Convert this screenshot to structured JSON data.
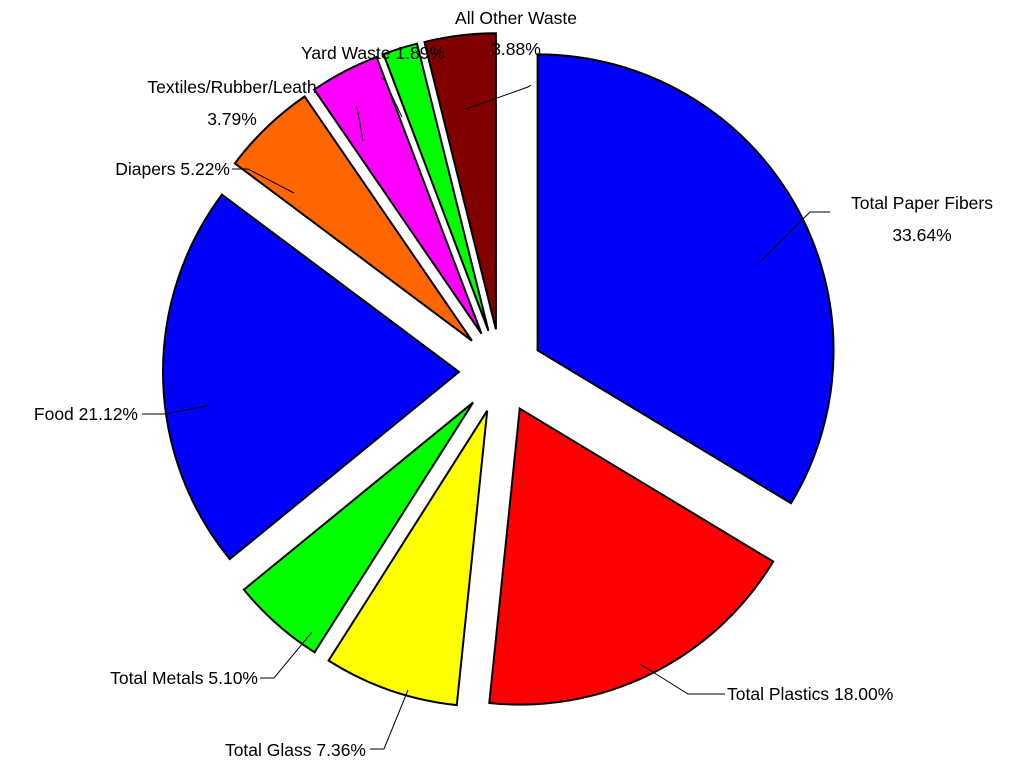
{
  "chart_data": {
    "type": "pie",
    "title": "",
    "legend": "none",
    "slices": [
      {
        "label": "Total Paper Fibers",
        "value": 33.64,
        "value_label": "33.64%",
        "color": "#0000ff"
      },
      {
        "label": "Total Plastics",
        "value": 18.0,
        "value_label": "18.00%",
        "color": "#ff0000"
      },
      {
        "label": "Total Glass",
        "value": 7.36,
        "value_label": "7.36%",
        "color": "#ffff00"
      },
      {
        "label": "Total Metals",
        "value": 5.1,
        "value_label": "5.10%",
        "color": "#00ff00"
      },
      {
        "label": "Food",
        "value": 21.12,
        "value_label": "21.12%",
        "color": "#0000ff"
      },
      {
        "label": "Diapers",
        "value": 5.22,
        "value_label": "5.22%",
        "color": "#ff6600"
      },
      {
        "label": "Textiles/Rubber/Leath",
        "value": 3.79,
        "value_label": "3.79%",
        "color": "#ff00ff"
      },
      {
        "label": "Yard Waste",
        "value": 1.89,
        "value_label": "1.89%",
        "color": "#00ff00"
      },
      {
        "label": "All Other Waste",
        "value": 3.88,
        "value_label": "3.88%",
        "color": "#800000"
      }
    ]
  }
}
